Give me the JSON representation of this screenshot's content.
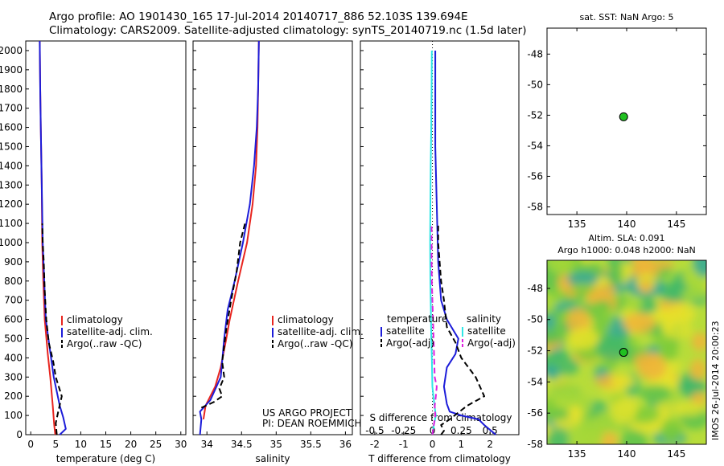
{
  "header": {
    "line1": "Argo profile: AO 1901430_165 17-Jul-2014 20140717_886 52.103S 139.694E",
    "line2": "Climatology: CARS2009. Satellite-adjusted climatology: synTS_20140719.nc (1.5d later)"
  },
  "colors": {
    "climatology": "#e8251f",
    "satellite": "#1c1cd9",
    "argo": "#000000",
    "sat_diff": "#2fe6e6",
    "argo_diff": "#e020e0",
    "marker": "#21c021"
  },
  "chart_data": [
    {
      "id": "temperature",
      "type": "line",
      "xlabel": "temperature (deg C)",
      "ylabel": "",
      "xlim": [
        -1,
        31
      ],
      "ylim": [
        2050,
        0
      ],
      "xticks": [
        0,
        5,
        10,
        15,
        20,
        25,
        30
      ],
      "yticks": [
        0,
        100,
        200,
        300,
        400,
        500,
        600,
        700,
        800,
        900,
        1000,
        1100,
        1200,
        1300,
        1400,
        1500,
        1600,
        1700,
        1800,
        1900,
        2000
      ],
      "legend": [
        "climatology",
        "satellite-adj. clim.",
        "Argo(..raw -QC)"
      ],
      "series": [
        {
          "name": "climatology",
          "style": "solid",
          "color_key": "climatology",
          "points": [
            [
              4.9,
              0
            ],
            [
              4.7,
              50
            ],
            [
              4.4,
              150
            ],
            [
              3.9,
              300
            ],
            [
              3.4,
              420
            ],
            [
              2.8,
              600
            ],
            [
              2.5,
              800
            ],
            [
              2.3,
              1000
            ],
            [
              2.2,
              1300
            ],
            [
              2.0,
              1600
            ],
            [
              1.9,
              1800
            ],
            [
              1.8,
              2050
            ]
          ]
        },
        {
          "name": "satellite-adj. clim.",
          "style": "solid",
          "color_key": "satellite",
          "points": [
            [
              5.8,
              0
            ],
            [
              7.0,
              30
            ],
            [
              6.5,
              90
            ],
            [
              5.8,
              150
            ],
            [
              4.6,
              300
            ],
            [
              3.8,
              450
            ],
            [
              3.0,
              600
            ],
            [
              2.7,
              800
            ],
            [
              2.4,
              1000
            ],
            [
              2.2,
              1300
            ],
            [
              2.0,
              1600
            ],
            [
              1.9,
              1800
            ],
            [
              1.8,
              2050
            ]
          ]
        },
        {
          "name": "Argo(..raw -QC)",
          "style": "dashed",
          "color_key": "argo",
          "points": [
            [
              5.2,
              0
            ],
            [
              5.0,
              60
            ],
            [
              5.5,
              120
            ],
            [
              6.2,
              200
            ],
            [
              5.0,
              300
            ],
            [
              4.5,
              380
            ],
            [
              3.6,
              480
            ],
            [
              3.1,
              600
            ],
            [
              2.8,
              750
            ],
            [
              2.6,
              900
            ],
            [
              2.4,
              1000
            ],
            [
              2.3,
              1100
            ]
          ]
        }
      ]
    },
    {
      "id": "salinity",
      "type": "line",
      "xlabel": "salinity",
      "ylabel": "",
      "xlim": [
        33.8,
        36.1
      ],
      "ylim": [
        2050,
        0
      ],
      "xticks": [
        34,
        34.5,
        35,
        35.5,
        36
      ],
      "legend": [
        "climatology",
        "satellite-adj. clim.",
        "Argo(..raw -QC)"
      ],
      "annotation_lines": [
        "US ARGO PROJECT",
        "PI: DEAN ROEMMICH"
      ],
      "series": [
        {
          "name": "climatology",
          "style": "solid",
          "color_key": "climatology",
          "points": [
            [
              33.95,
              80
            ],
            [
              33.98,
              150
            ],
            [
              34.12,
              250
            ],
            [
              34.2,
              350
            ],
            [
              34.28,
              500
            ],
            [
              34.33,
              600
            ],
            [
              34.45,
              800
            ],
            [
              34.58,
              1000
            ],
            [
              34.66,
              1200
            ],
            [
              34.71,
              1400
            ],
            [
              34.73,
              1600
            ],
            [
              34.74,
              1800
            ],
            [
              34.75,
              2050
            ]
          ]
        },
        {
          "name": "satellite-adj. clim.",
          "style": "solid",
          "color_key": "satellite",
          "points": [
            [
              33.9,
              0
            ],
            [
              33.92,
              80
            ],
            [
              33.9,
              120
            ],
            [
              34.05,
              180
            ],
            [
              34.2,
              300
            ],
            [
              34.25,
              500
            ],
            [
              34.3,
              650
            ],
            [
              34.4,
              800
            ],
            [
              34.52,
              1000
            ],
            [
              34.62,
              1200
            ],
            [
              34.68,
              1400
            ],
            [
              34.72,
              1600
            ],
            [
              34.74,
              1800
            ],
            [
              34.75,
              2050
            ]
          ]
        },
        {
          "name": "Argo(..raw -QC)",
          "style": "dashed",
          "color_key": "argo",
          "points": [
            [
              33.92,
              140
            ],
            [
              34.1,
              170
            ],
            [
              34.22,
              200
            ],
            [
              34.18,
              240
            ],
            [
              34.25,
              300
            ],
            [
              34.22,
              380
            ],
            [
              34.28,
              550
            ],
            [
              34.35,
              700
            ],
            [
              34.43,
              850
            ],
            [
              34.48,
              1000
            ],
            [
              34.55,
              1100
            ]
          ]
        }
      ]
    },
    {
      "id": "difference",
      "type": "line",
      "xlabel_top": "S difference from climatology",
      "xlabel": "T difference from climatology",
      "xlim": [
        -2.5,
        3.0
      ],
      "ylim": [
        2050,
        0
      ],
      "xticks": [
        -2,
        -1,
        0,
        1,
        2
      ],
      "xticks_top": [
        -0.5,
        -0.25,
        0,
        0.25,
        0.5
      ],
      "legend_groups": [
        {
          "title": "temperature",
          "items": [
            "satellite",
            "Argo(-adj)"
          ]
        },
        {
          "title": "salinity",
          "items": [
            "satellite",
            "Argo(-adj)"
          ]
        }
      ],
      "series": [
        {
          "name": "temperature satellite",
          "style": "solid",
          "color_key": "satellite",
          "points": [
            [
              2.2,
              0
            ],
            [
              1.8,
              50
            ],
            [
              1.6,
              80
            ],
            [
              1.0,
              100
            ],
            [
              0.6,
              120
            ],
            [
              0.5,
              160
            ],
            [
              0.4,
              250
            ],
            [
              0.5,
              350
            ],
            [
              0.8,
              420
            ],
            [
              0.9,
              500
            ],
            [
              0.5,
              600
            ],
            [
              0.3,
              700
            ],
            [
              0.2,
              900
            ],
            [
              0.15,
              1200
            ],
            [
              0.1,
              1500
            ],
            [
              0.1,
              1800
            ],
            [
              0.1,
              2000
            ]
          ]
        },
        {
          "name": "temperature Argo(-adj)",
          "style": "dashed",
          "color_key": "argo",
          "points": [
            [
              0.3,
              0
            ],
            [
              0.4,
              20
            ],
            [
              0.3,
              50
            ],
            [
              0.6,
              80
            ],
            [
              1.2,
              150
            ],
            [
              1.8,
              200
            ],
            [
              1.5,
              300
            ],
            [
              1.0,
              400
            ],
            [
              0.8,
              480
            ],
            [
              0.5,
              560
            ],
            [
              0.4,
              700
            ],
            [
              0.3,
              800
            ],
            [
              0.25,
              900
            ],
            [
              0.2,
              1000
            ],
            [
              0.2,
              1100
            ]
          ]
        },
        {
          "name": "salinity satellite",
          "style": "solid",
          "color_key": "sat_diff",
          "points": [
            [
              0.0,
              0
            ],
            [
              0.05,
              50
            ],
            [
              0.12,
              100
            ],
            [
              0.1,
              120
            ],
            [
              0.05,
              180
            ],
            [
              0.0,
              250
            ],
            [
              -0.02,
              400
            ],
            [
              -0.04,
              500
            ],
            [
              -0.05,
              600
            ],
            [
              -0.06,
              700
            ],
            [
              -0.07,
              800
            ],
            [
              -0.08,
              1000
            ],
            [
              -0.07,
              1200
            ],
            [
              -0.06,
              1400
            ],
            [
              -0.04,
              1600
            ],
            [
              -0.03,
              1800
            ],
            [
              -0.02,
              2000
            ]
          ]
        },
        {
          "name": "salinity Argo(-adj)",
          "style": "dashed",
          "color_key": "argo_diff",
          "points": [
            [
              0.0,
              0
            ],
            [
              0.05,
              50
            ],
            [
              0.1,
              100
            ],
            [
              0.08,
              150
            ],
            [
              0.12,
              200
            ],
            [
              0.15,
              250
            ],
            [
              0.08,
              300
            ],
            [
              0.06,
              400
            ],
            [
              0.04,
              500
            ],
            [
              0.02,
              600
            ],
            [
              0.0,
              700
            ],
            [
              -0.02,
              800
            ],
            [
              -0.03,
              900
            ],
            [
              -0.03,
              1000
            ],
            [
              -0.03,
              1100
            ]
          ]
        }
      ]
    },
    {
      "id": "location_map",
      "type": "scatter",
      "title": "sat. SST: NaN Argo: 5",
      "xlim": [
        132,
        148
      ],
      "ylim": [
        -58.5,
        -46.3
      ],
      "xticks": [
        135,
        140,
        145
      ],
      "yticks": [
        -48,
        -50,
        -52,
        -54,
        -56,
        -58
      ],
      "points": [
        [
          139.694,
          -52.103
        ]
      ]
    },
    {
      "id": "sla_map",
      "type": "heatmap",
      "title_line1": "Altim. SLA: 0.091",
      "title_line2": "Argo h1000: 0.048 h2000: NaN",
      "xlim": [
        132,
        148
      ],
      "ylim": [
        -58,
        -46.2
      ],
      "xticks": [
        135,
        140,
        145
      ],
      "yticks": [
        -48,
        -50,
        -52,
        -54,
        -56,
        -58
      ],
      "points": [
        [
          139.694,
          -52.103
        ]
      ],
      "side_label": "IMOS 26-Jul-2014 20:00:23"
    }
  ]
}
